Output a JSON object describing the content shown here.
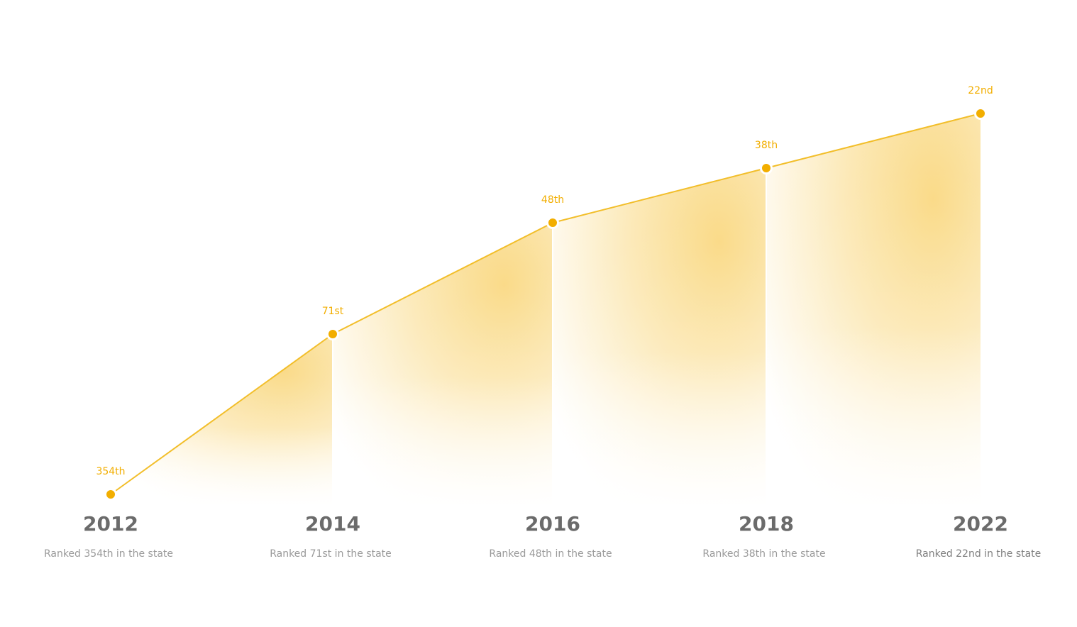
{
  "chart_data": {
    "type": "area",
    "x": [
      "2012",
      "2014",
      "2016",
      "2018",
      "2022"
    ],
    "values": [
      354,
      71,
      48,
      38,
      22
    ],
    "point_labels": [
      "354th",
      "71st",
      "48th",
      "38th",
      "22nd"
    ],
    "descriptions": [
      "Ranked 354th in the state",
      "Ranked 71st in the state",
      "Ranked 48th in the state",
      "Ranked 38th in the state",
      "Ranked 22nd in the state"
    ],
    "title": "",
    "xlabel": "",
    "ylabel": "",
    "grid": false,
    "legend": "none"
  },
  "colors": {
    "accent": "#F2AE00",
    "line": "#F2BE2A",
    "fill": "#F9D577",
    "year_text": "#6B6B6B",
    "desc_text": "#9A9A9A"
  }
}
